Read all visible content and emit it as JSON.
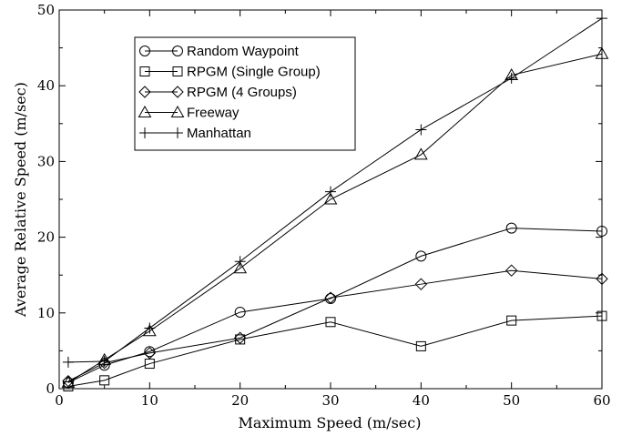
{
  "chart_data": {
    "type": "line",
    "title": "",
    "xlabel": "Maximum Speed (m/sec)",
    "ylabel": "Average Relative Speed (m/sec)",
    "xlim": [
      0,
      60
    ],
    "ylim": [
      0,
      50
    ],
    "xticks": [
      0,
      10,
      20,
      30,
      40,
      50,
      60
    ],
    "yticks": [
      0,
      10,
      20,
      30,
      40,
      50
    ],
    "grid": false,
    "legend_position": "top-left",
    "x": [
      1,
      5,
      10,
      20,
      30,
      40,
      50,
      60
    ],
    "series": [
      {
        "name": "Random Waypoint",
        "marker": "circle",
        "values": [
          0.8,
          3.1,
          4.9,
          10.1,
          11.9,
          17.5,
          21.2,
          20.8
        ]
      },
      {
        "name": "RPGM (Single Group)",
        "marker": "square",
        "values": [
          0.3,
          1.1,
          3.3,
          6.5,
          8.8,
          5.6,
          9.0,
          9.6
        ]
      },
      {
        "name": "RPGM (4 Groups)",
        "marker": "diamond",
        "values": [
          1.0,
          3.4,
          4.7,
          6.7,
          12.0,
          13.8,
          15.6,
          14.5
        ]
      },
      {
        "name": "Freeway",
        "marker": "triangle",
        "values": [
          0.8,
          3.8,
          7.6,
          15.9,
          25.0,
          30.9,
          41.4,
          44.2
        ]
      },
      {
        "name": "Manhattan",
        "marker": "plus",
        "values": [
          3.5,
          3.6,
          8.0,
          16.8,
          26.0,
          34.2,
          41.0,
          48.9
        ]
      }
    ]
  }
}
